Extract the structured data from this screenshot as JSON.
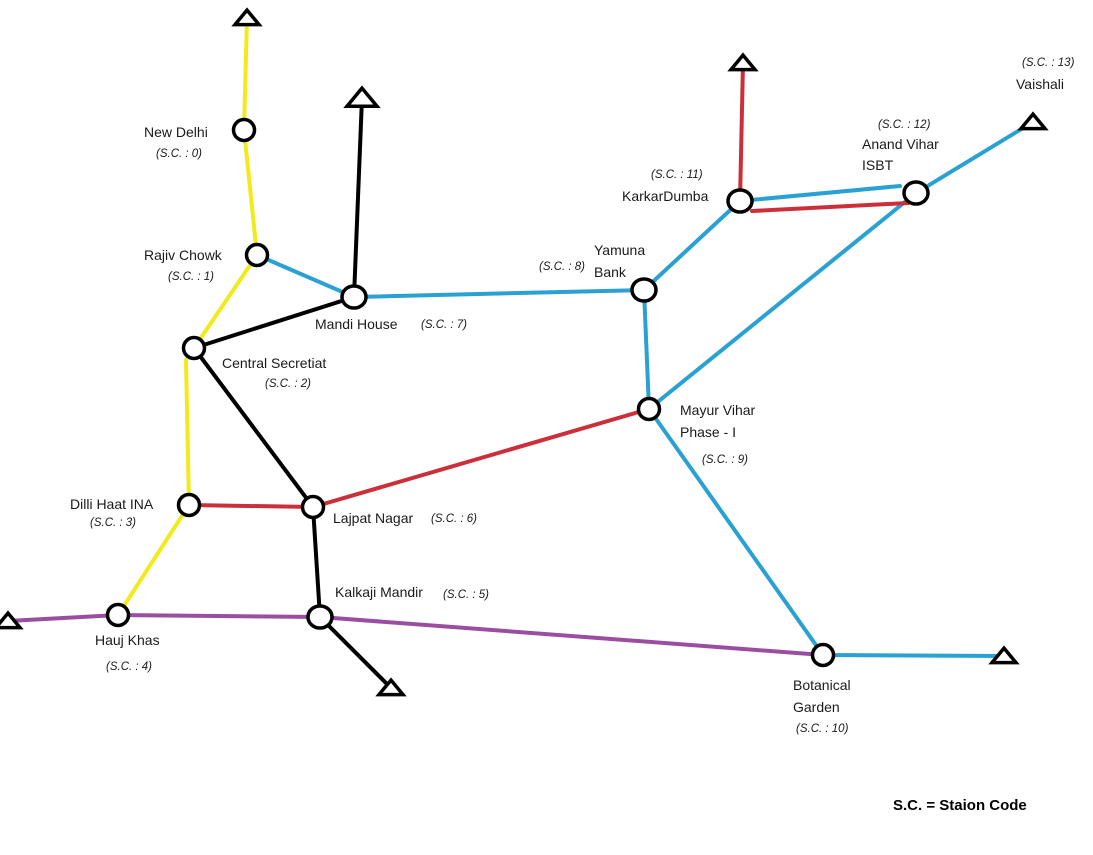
{
  "colors": {
    "yellow": "#f2ea1a",
    "blue": "#2aa1d3",
    "red": "#cd2f3a",
    "black": "#000000",
    "purple": "#9b4ea1"
  },
  "stations": [
    {
      "id": "new-delhi",
      "name": [
        "New Delhi"
      ],
      "code": "(S.C. : 0)"
    },
    {
      "id": "rajiv-chowk",
      "name": [
        "Rajiv Chowk"
      ],
      "code": "(S.C. : 1)"
    },
    {
      "id": "central-secretiat",
      "name": [
        "Central Secretiat"
      ],
      "code": "(S.C. : 2)"
    },
    {
      "id": "dilli-haat-ina",
      "name": [
        "Dilli Haat INA"
      ],
      "code": "(S.C. : 3)"
    },
    {
      "id": "hauj-khas",
      "name": [
        "Hauj Khas"
      ],
      "code": "(S.C. : 4)"
    },
    {
      "id": "kalkaji-mandir",
      "name": [
        "Kalkaji Mandir"
      ],
      "code": "(S.C. : 5)"
    },
    {
      "id": "lajpat-nagar",
      "name": [
        "Lajpat Nagar"
      ],
      "code": "(S.C. : 6)"
    },
    {
      "id": "mandi-house",
      "name": [
        "Mandi House"
      ],
      "code": "(S.C. : 7)"
    },
    {
      "id": "yamuna-bank",
      "name": [
        "Yamuna",
        "Bank"
      ],
      "code": "(S.C. : 8)"
    },
    {
      "id": "mayur-vihar",
      "name": [
        "Mayur Vihar",
        "Phase - I"
      ],
      "code": "(S.C. : 9)"
    },
    {
      "id": "botanical-garden",
      "name": [
        "Botanical",
        "Garden"
      ],
      "code": "(S.C. : 10)"
    },
    {
      "id": "karkardumba",
      "name": [
        "KarkarDumba"
      ],
      "code": "(S.C. : 11)"
    },
    {
      "id": "anand-vihar",
      "name": [
        "Anand Vihar",
        "ISBT"
      ],
      "code": "(S.C. : 12)"
    },
    {
      "id": "vaishali",
      "name": [
        "Vaishali"
      ],
      "code": "(S.C. : 13)"
    }
  ],
  "legend": "S.C. = Staion Code"
}
